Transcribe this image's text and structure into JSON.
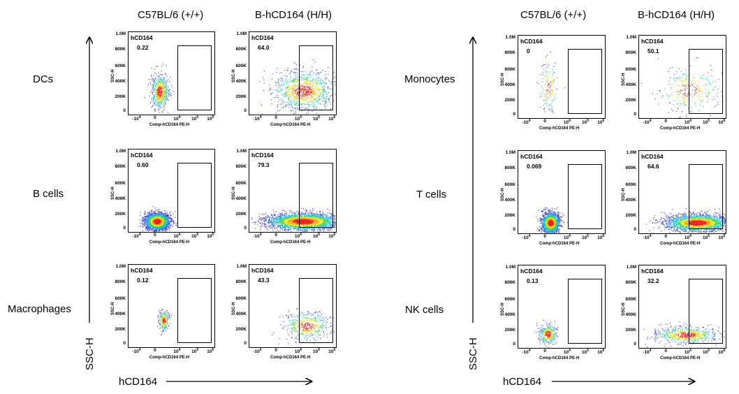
{
  "columns": [
    "C57BL/6 (+/+)",
    "B-hCD164 (H/H)"
  ],
  "axis": {
    "y_label": "SSC-H",
    "x_label": "hCD164",
    "panel_y_name": "SSC-H",
    "panel_x_name": "Comp-hCD164 PE-H",
    "y_ticks": [
      "1.0M",
      "800K",
      "600K",
      "400K",
      "200K",
      "0"
    ],
    "x_ticks": [
      "-10",
      "0",
      "10",
      "10",
      "10"
    ],
    "x_tick_exps": [
      "4",
      "",
      "4",
      "5",
      "6"
    ]
  },
  "gate_label": "hCD164",
  "chart_data": {
    "type": "scatter",
    "description_panels": [
      {
        "population": "DCs",
        "group": "C57BL/6 (+/+)",
        "gate_percent": "0.22"
      },
      {
        "population": "DCs",
        "group": "B-hCD164 (H/H)",
        "gate_percent": "64.0"
      },
      {
        "population": "B cells",
        "group": "C57BL/6 (+/+)",
        "gate_percent": "0.60"
      },
      {
        "population": "B cells",
        "group": "B-hCD164 (H/H)",
        "gate_percent": "79.3"
      },
      {
        "population": "Macrophages",
        "group": "C57BL/6 (+/+)",
        "gate_percent": "0.12"
      },
      {
        "population": "Macrophages",
        "group": "B-hCD164 (H/H)",
        "gate_percent": "43.3"
      },
      {
        "population": "Monocytes",
        "group": "C57BL/6 (+/+)",
        "gate_percent": "0"
      },
      {
        "population": "Monocytes",
        "group": "B-hCD164 (H/H)",
        "gate_percent": "50.1"
      },
      {
        "population": "T cells",
        "group": "C57BL/6 (+/+)",
        "gate_percent": "0.069"
      },
      {
        "population": "T cells",
        "group": "B-hCD164 (H/H)",
        "gate_percent": "64.6"
      },
      {
        "population": "NK cells",
        "group": "C57BL/6 (+/+)",
        "gate_percent": "0.13"
      },
      {
        "population": "NK cells",
        "group": "B-hCD164 (H/H)",
        "gate_percent": "32.2"
      }
    ]
  },
  "left_block": {
    "rows": [
      "DCs",
      "B cells",
      "Macrophages"
    ],
    "values": [
      [
        "0.22",
        "64.0"
      ],
      [
        "0.60",
        "79.3"
      ],
      [
        "0.12",
        "43.3"
      ]
    ]
  },
  "right_block": {
    "rows": [
      "Monocytes",
      "T cells",
      "NK cells"
    ],
    "values": [
      [
        "0",
        "50.1"
      ],
      [
        "0.069",
        "64.6"
      ],
      [
        "0.13",
        "32.2"
      ]
    ]
  }
}
